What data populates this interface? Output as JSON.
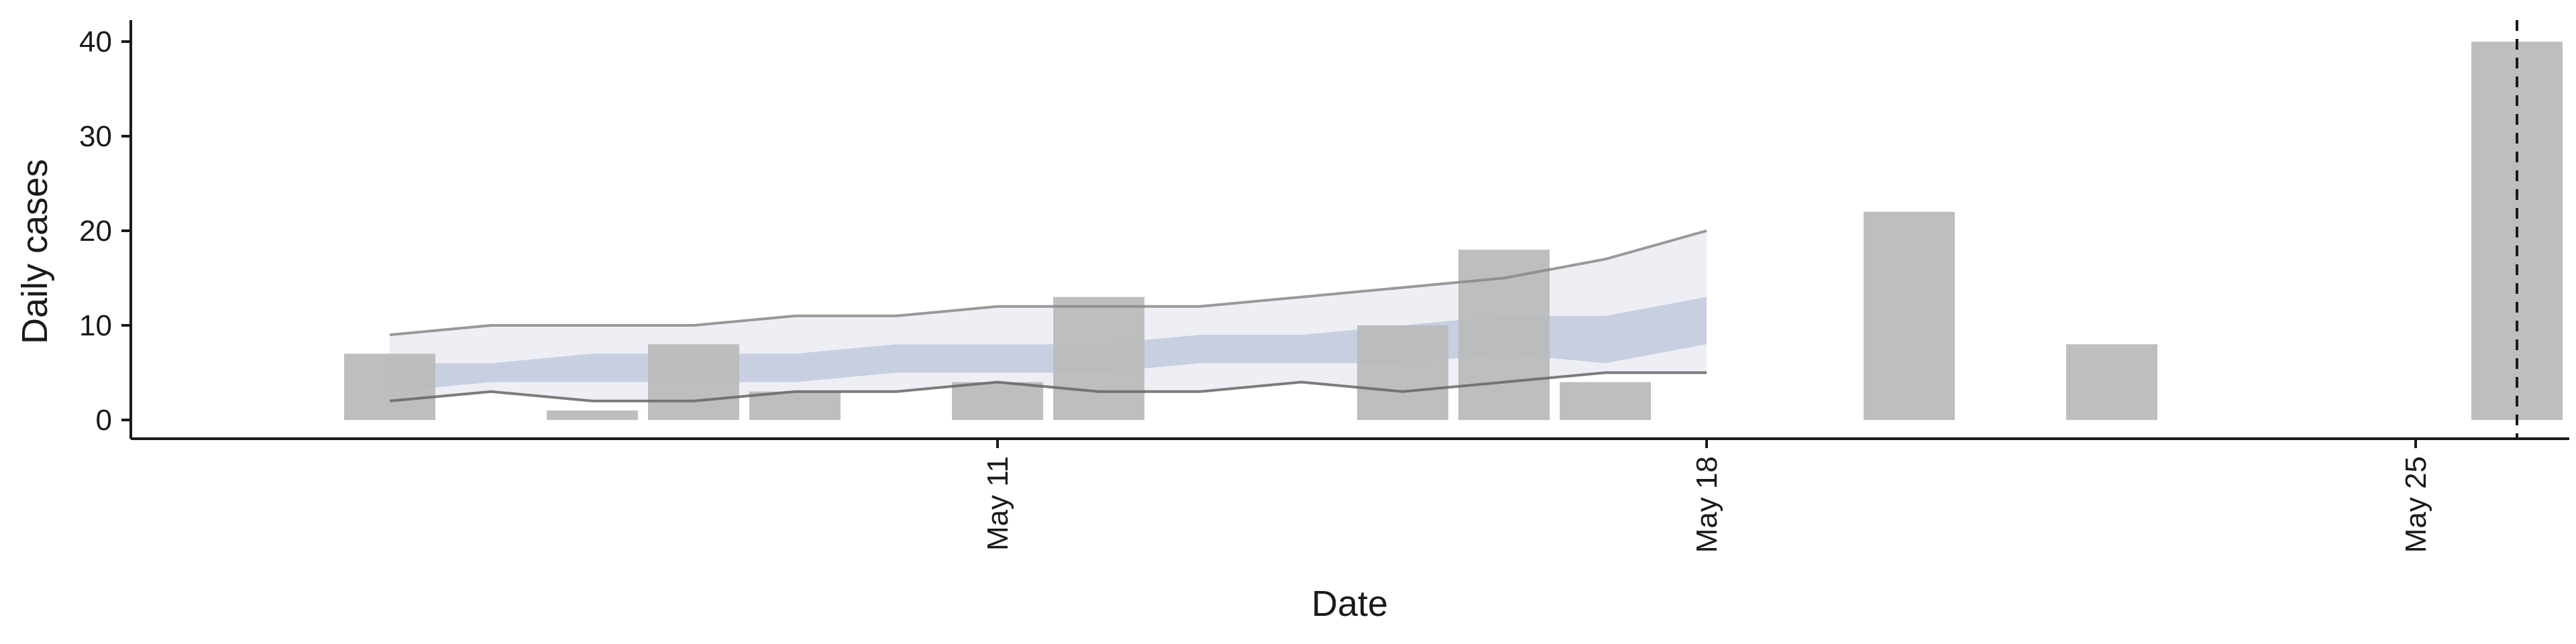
{
  "chart_data": {
    "type": "bar",
    "xlabel": "Date",
    "ylabel": "Daily cases",
    "x_axis": {
      "type": "date",
      "range": [
        "2020-05-04",
        "2020-05-31"
      ],
      "ticks": [
        {
          "date": "2020-05-11",
          "label": "May 11"
        },
        {
          "date": "2020-05-18",
          "label": "May 18"
        },
        {
          "date": "2020-05-25",
          "label": "May 25"
        }
      ]
    },
    "y_axis": {
      "range": [
        -2,
        42
      ],
      "ticks": [
        0,
        10,
        20,
        30,
        40
      ]
    },
    "grid": false,
    "legend": "none",
    "cases": [
      {
        "date": "2020-05-05",
        "value": 7
      },
      {
        "date": "2020-05-07",
        "value": 1
      },
      {
        "date": "2020-05-08",
        "value": 8
      },
      {
        "date": "2020-05-09",
        "value": 3
      },
      {
        "date": "2020-05-11",
        "value": 4
      },
      {
        "date": "2020-05-12",
        "value": 13
      },
      {
        "date": "2020-05-15",
        "value": 10
      },
      {
        "date": "2020-05-16",
        "value": 18
      },
      {
        "date": "2020-05-17",
        "value": 4
      },
      {
        "date": "2020-05-20",
        "value": 22
      },
      {
        "date": "2020-05-22",
        "value": 8
      },
      {
        "date": "2020-05-26",
        "value": 40
      }
    ],
    "forecast_dates": [
      "2020-05-05",
      "2020-05-06",
      "2020-05-07",
      "2020-05-08",
      "2020-05-09",
      "2020-05-10",
      "2020-05-11",
      "2020-05-12",
      "2020-05-13",
      "2020-05-14",
      "2020-05-15",
      "2020-05-16",
      "2020-05-17",
      "2020-05-18"
    ],
    "forecast_outer_lower": [
      2,
      3,
      2,
      2,
      3,
      3,
      4,
      3,
      3,
      4,
      3,
      4,
      5,
      5
    ],
    "forecast_outer_upper": [
      9,
      10,
      10,
      10,
      11,
      11,
      12,
      12,
      12,
      13,
      14,
      15,
      17,
      20
    ],
    "forecast_inner_lower": [
      3,
      4,
      4,
      4,
      4,
      5,
      5,
      5,
      6,
      6,
      6,
      7,
      6,
      8
    ],
    "forecast_inner_upper": [
      6,
      6,
      7,
      7,
      7,
      8,
      8,
      8,
      9,
      9,
      10,
      11,
      11,
      13
    ],
    "reference_line_date": "2020-05-26",
    "colors": {
      "bar": "#bbbbbb",
      "outer_band": "#dfe2ec",
      "inner_band": "#a9b4cf",
      "upper_line": "#888888",
      "lower_line": "#666666",
      "axis": "#1a1a1a"
    }
  }
}
